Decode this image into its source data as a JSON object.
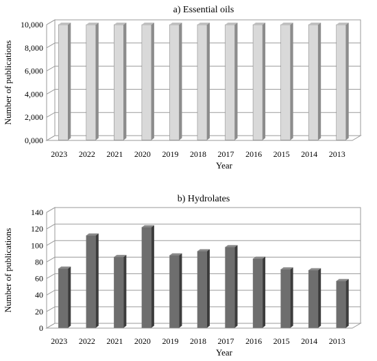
{
  "chart_data": [
    {
      "type": "bar",
      "title": "a) Essential oils",
      "xlabel": "Year",
      "ylabel": "Number of publications",
      "categories": [
        "2023",
        "2022",
        "2021",
        "2020",
        "2019",
        "2018",
        "2017",
        "2016",
        "2015",
        "2014",
        "2013"
      ],
      "values": [
        10000,
        10000,
        10000,
        10000,
        10000,
        10000,
        10000,
        10000,
        10000,
        10000,
        10000
      ],
      "ylim": [
        0,
        10000
      ],
      "yticks": [
        "0,000",
        "2,000",
        "4,000",
        "6,000",
        "8,000",
        "10,000"
      ],
      "grid": true,
      "bar_front_color": "#d9d9d9",
      "bar_side_color": "#8c8c8c",
      "bar_top_color": "#bfbfbf"
    },
    {
      "type": "bar",
      "title": "b) Hydrolates",
      "xlabel": "Year",
      "ylabel": "Number of publications",
      "categories": [
        "2023",
        "2022",
        "2021",
        "2020",
        "2019",
        "2018",
        "2017",
        "2016",
        "2015",
        "2014",
        "2013"
      ],
      "values": [
        72,
        112,
        86,
        122,
        88,
        93,
        98,
        84,
        71,
        70,
        57
      ],
      "ylim": [
        0,
        140
      ],
      "yticks": [
        "0",
        "20",
        "40",
        "60",
        "80",
        "100",
        "120",
        "140"
      ],
      "grid": true,
      "bar_front_color": "#6e6e6e",
      "bar_side_color": "#3c3c3c",
      "bar_top_color": "#8a8a8a"
    }
  ]
}
